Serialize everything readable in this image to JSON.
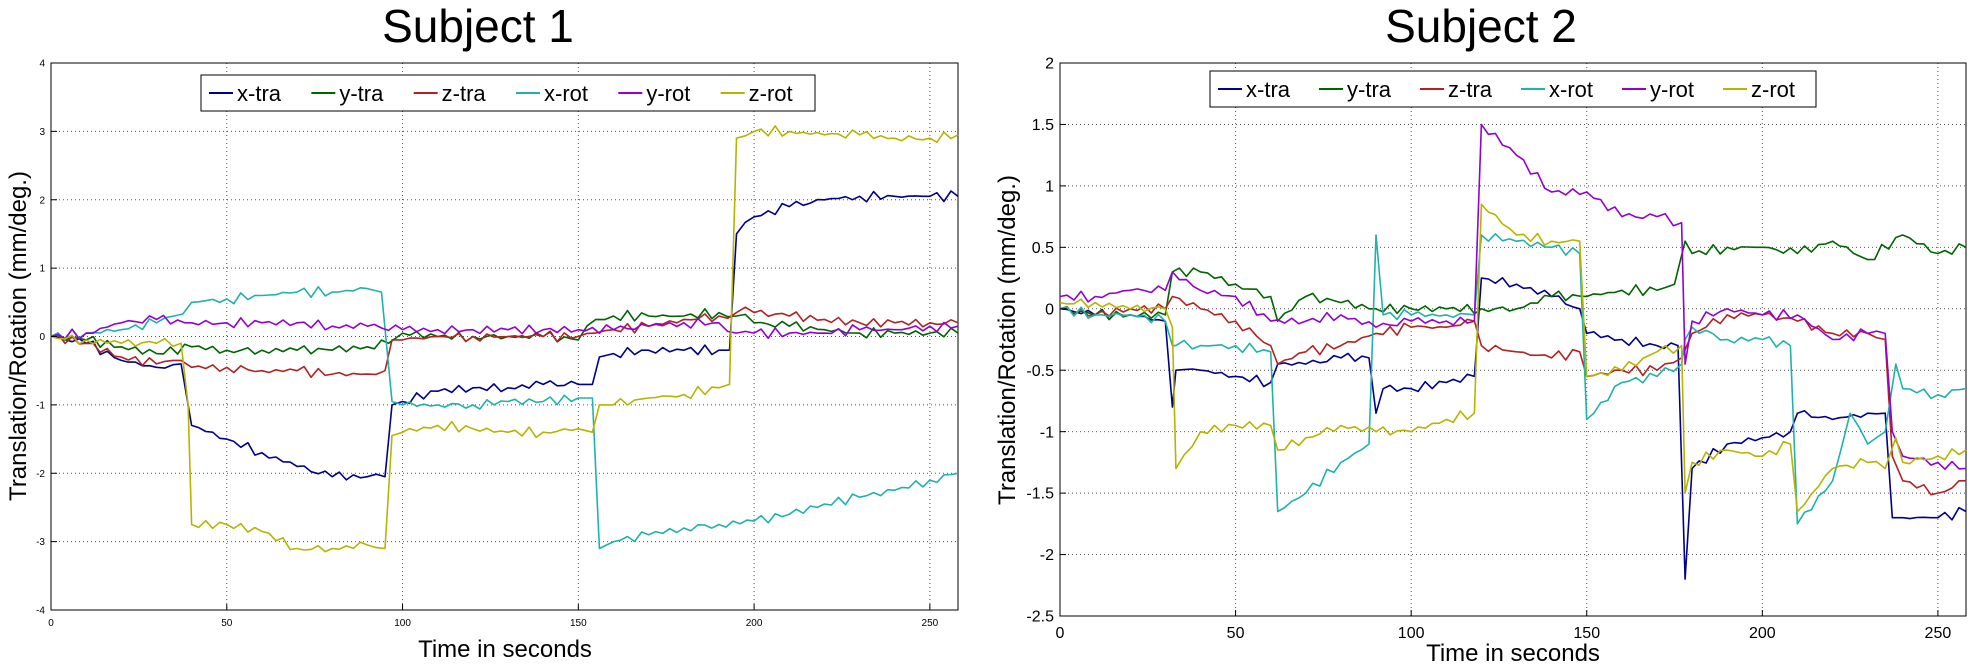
{
  "chart_data": [
    {
      "type": "line",
      "title": "Subject 1",
      "xlabel": "Time in seconds",
      "ylabel": "Translation/Rotation (mm/deg.)",
      "xlim": [
        0,
        258
      ],
      "ylim": [
        -4,
        4
      ],
      "xticks": [
        0,
        50,
        100,
        150,
        200,
        250
      ],
      "yticks": [
        -4,
        -3,
        -2,
        -1,
        0,
        1,
        2,
        3,
        4
      ],
      "grid": true,
      "legend_position": "top-center",
      "series": [
        {
          "name": "x-tra",
          "color": "#00008b",
          "x": [
            0,
            10,
            20,
            30,
            37,
            40,
            50,
            60,
            70,
            80,
            90,
            95,
            97,
            100,
            110,
            120,
            130,
            140,
            150,
            154,
            156,
            160,
            170,
            180,
            190,
            193,
            195,
            200,
            210,
            220,
            230,
            240,
            250,
            258
          ],
          "y": [
            0,
            -0.1,
            -0.35,
            -0.45,
            -0.4,
            -1.3,
            -1.5,
            -1.7,
            -1.9,
            -2.05,
            -2.05,
            -2.05,
            -1.0,
            -0.95,
            -0.8,
            -0.75,
            -0.75,
            -0.7,
            -0.7,
            -0.7,
            -0.3,
            -0.25,
            -0.2,
            -0.2,
            -0.2,
            -0.2,
            1.5,
            1.75,
            1.9,
            2.0,
            2.05,
            2.05,
            2.05,
            2.05
          ]
        },
        {
          "name": "y-tra",
          "color": "#006400",
          "x": [
            0,
            10,
            20,
            30,
            40,
            50,
            60,
            70,
            80,
            90,
            96,
            100,
            110,
            120,
            130,
            140,
            150,
            155,
            160,
            170,
            180,
            190,
            195,
            200,
            210,
            220,
            230,
            240,
            250,
            258
          ],
          "y": [
            0,
            -0.05,
            -0.15,
            -0.25,
            -0.15,
            -0.2,
            -0.2,
            -0.2,
            -0.2,
            -0.15,
            -0.1,
            0.05,
            0,
            0,
            0,
            0,
            -0.05,
            0.25,
            0.3,
            0.3,
            0.3,
            0.35,
            0.3,
            0.2,
            0.15,
            0.1,
            0.05,
            0.05,
            0.05,
            0.05
          ]
        },
        {
          "name": "z-tra",
          "color": "#b22222",
          "x": [
            0,
            10,
            20,
            30,
            37,
            40,
            50,
            60,
            70,
            80,
            90,
            95,
            97,
            100,
            110,
            120,
            130,
            140,
            150,
            155,
            160,
            170,
            180,
            190,
            195,
            200,
            210,
            220,
            230,
            240,
            250,
            258
          ],
          "y": [
            0,
            -0.1,
            -0.3,
            -0.4,
            -0.35,
            -0.45,
            -0.45,
            -0.5,
            -0.5,
            -0.55,
            -0.55,
            -0.5,
            -0.05,
            -0.05,
            0,
            0,
            0,
            0,
            0,
            0.05,
            0.1,
            0.15,
            0.25,
            0.3,
            0.35,
            0.35,
            0.3,
            0.25,
            0.2,
            0.2,
            0.2,
            0.2
          ]
        },
        {
          "name": "x-rot",
          "color": "#20b2aa",
          "x": [
            0,
            10,
            20,
            30,
            35,
            40,
            50,
            60,
            70,
            80,
            90,
            94,
            97,
            100,
            110,
            120,
            130,
            140,
            150,
            154,
            156,
            160,
            170,
            180,
            190,
            200,
            210,
            220,
            230,
            240,
            250,
            258
          ],
          "y": [
            0,
            0.05,
            0.1,
            0.2,
            0.3,
            0.5,
            0.55,
            0.6,
            0.65,
            0.65,
            0.7,
            0.65,
            -0.95,
            -1.0,
            -1.0,
            -1.0,
            -0.95,
            -0.95,
            -0.9,
            -0.9,
            -3.1,
            -3.0,
            -2.9,
            -2.8,
            -2.75,
            -2.7,
            -2.6,
            -2.45,
            -2.35,
            -2.25,
            -2.1,
            -2.0
          ]
        },
        {
          "name": "y-rot",
          "color": "#9400d3",
          "x": [
            0,
            10,
            20,
            30,
            40,
            50,
            60,
            70,
            80,
            90,
            100,
            110,
            120,
            130,
            140,
            150,
            160,
            170,
            180,
            190,
            195,
            200,
            210,
            220,
            230,
            240,
            250,
            258
          ],
          "y": [
            0,
            0.05,
            0.2,
            0.25,
            0.2,
            0.2,
            0.2,
            0.2,
            0.15,
            0.15,
            0.1,
            0.1,
            0.1,
            0.1,
            0.1,
            0.1,
            0.1,
            0.15,
            0.2,
            0.2,
            0.05,
            0.05,
            0.05,
            0.05,
            0.1,
            0.1,
            0.15,
            0.15
          ]
        },
        {
          "name": "z-rot",
          "color": "#b5b500",
          "x": [
            0,
            10,
            20,
            30,
            37,
            39,
            40,
            50,
            60,
            70,
            80,
            90,
            95,
            97,
            100,
            110,
            120,
            130,
            140,
            150,
            154,
            156,
            160,
            170,
            180,
            190,
            193,
            195,
            200,
            210,
            220,
            230,
            240,
            250,
            258
          ],
          "y": [
            0,
            -0.05,
            -0.1,
            -0.1,
            -0.1,
            -1.0,
            -2.75,
            -2.75,
            -2.85,
            -3.1,
            -3.1,
            -3.05,
            -3.1,
            -1.45,
            -1.4,
            -1.3,
            -1.35,
            -1.4,
            -1.4,
            -1.35,
            -1.4,
            -1.0,
            -1.0,
            -0.9,
            -0.85,
            -0.75,
            -0.7,
            2.9,
            3.0,
            3.0,
            2.95,
            2.95,
            2.9,
            2.9,
            2.95
          ]
        }
      ]
    },
    {
      "type": "line",
      "title": "Subject 2",
      "xlabel": "Time in seconds",
      "ylabel": "Translation/Rotation (mm/deg.)",
      "xlim": [
        0,
        258
      ],
      "ylim": [
        -2.5,
        2
      ],
      "xticks": [
        0,
        50,
        100,
        150,
        200,
        250
      ],
      "yticks": [
        -2.5,
        -2,
        -1.5,
        -1,
        -0.5,
        0,
        0.5,
        1,
        1.5,
        2
      ],
      "grid": true,
      "legend_position": "top-center",
      "series": [
        {
          "name": "x-tra",
          "color": "#00008b",
          "x": [
            0,
            10,
            20,
            30,
            32,
            33,
            40,
            50,
            60,
            62,
            70,
            80,
            88,
            90,
            92,
            100,
            110,
            118,
            120,
            130,
            140,
            148,
            150,
            160,
            170,
            176,
            178,
            180,
            190,
            200,
            208,
            210,
            220,
            230,
            235,
            237,
            240,
            250,
            258
          ],
          "y": [
            0,
            -0.05,
            -0.05,
            -0.1,
            -0.8,
            -0.5,
            -0.5,
            -0.55,
            -0.6,
            -0.45,
            -0.45,
            -0.4,
            -0.4,
            -0.85,
            -0.65,
            -0.65,
            -0.6,
            -0.55,
            0.25,
            0.2,
            0.1,
            0,
            -0.2,
            -0.25,
            -0.3,
            -0.3,
            -2.2,
            -1.3,
            -1.1,
            -1.05,
            -1.0,
            -0.85,
            -0.9,
            -0.85,
            -0.85,
            -1.7,
            -1.7,
            -1.7,
            -1.65
          ]
        },
        {
          "name": "y-tra",
          "color": "#006400",
          "x": [
            0,
            10,
            20,
            30,
            32,
            40,
            50,
            60,
            62,
            70,
            80,
            90,
            100,
            110,
            120,
            130,
            140,
            150,
            160,
            170,
            175,
            178,
            180,
            190,
            200,
            210,
            220,
            230,
            240,
            250,
            258
          ],
          "y": [
            0,
            -0.05,
            -0.05,
            -0.05,
            0.3,
            0.3,
            0.2,
            0.1,
            -0.1,
            0.1,
            0.05,
            0,
            0,
            0,
            0,
            0,
            0.1,
            0.1,
            0.15,
            0.15,
            0.2,
            0.55,
            0.45,
            0.5,
            0.5,
            0.45,
            0.55,
            0.4,
            0.6,
            0.45,
            0.5
          ]
        },
        {
          "name": "z-tra",
          "color": "#b22222",
          "x": [
            0,
            10,
            20,
            30,
            32,
            40,
            50,
            60,
            62,
            70,
            80,
            90,
            100,
            110,
            118,
            120,
            130,
            140,
            148,
            150,
            160,
            170,
            177,
            180,
            190,
            200,
            210,
            220,
            230,
            235,
            237,
            240,
            250,
            258
          ],
          "y": [
            0,
            -0.05,
            0,
            0,
            0.1,
            0,
            -0.1,
            -0.3,
            -0.45,
            -0.35,
            -0.3,
            -0.2,
            -0.15,
            -0.15,
            -0.1,
            -0.3,
            -0.35,
            -0.4,
            -0.35,
            -0.55,
            -0.5,
            -0.5,
            -0.4,
            -0.2,
            -0.05,
            -0.05,
            -0.1,
            -0.2,
            -0.2,
            -0.25,
            -1.2,
            -1.4,
            -1.5,
            -1.4
          ]
        },
        {
          "name": "x-rot",
          "color": "#20b2aa",
          "x": [
            0,
            10,
            20,
            30,
            32,
            33,
            40,
            50,
            60,
            62,
            70,
            80,
            88,
            90,
            92,
            100,
            110,
            118,
            120,
            130,
            140,
            148,
            150,
            160,
            170,
            177,
            178,
            180,
            190,
            200,
            208,
            210,
            220,
            225,
            230,
            235,
            238,
            240,
            250,
            258
          ],
          "y": [
            0,
            -0.05,
            -0.05,
            -0.1,
            -0.3,
            -0.3,
            -0.3,
            -0.3,
            -0.35,
            -1.65,
            -1.5,
            -1.25,
            -1.1,
            0.6,
            -0.05,
            -0.05,
            -0.05,
            -0.05,
            0.6,
            0.55,
            0.5,
            0.45,
            -0.9,
            -0.6,
            -0.55,
            -0.45,
            -0.25,
            -0.15,
            -0.25,
            -0.25,
            -0.3,
            -1.75,
            -1.4,
            -0.85,
            -1.1,
            -1.0,
            -0.45,
            -0.65,
            -0.7,
            -0.65
          ]
        },
        {
          "name": "y-rot",
          "color": "#9400d3",
          "x": [
            0,
            10,
            20,
            30,
            32,
            40,
            50,
            60,
            70,
            80,
            90,
            100,
            110,
            118,
            120,
            130,
            140,
            150,
            160,
            170,
            177,
            178,
            180,
            190,
            200,
            210,
            220,
            230,
            235,
            237,
            240,
            250,
            258
          ],
          "y": [
            0.1,
            0.1,
            0.15,
            0.15,
            0.3,
            0.15,
            0.1,
            -0.1,
            -0.1,
            -0.05,
            -0.15,
            -0.1,
            -0.1,
            -0.1,
            1.5,
            1.25,
            0.95,
            0.95,
            0.75,
            0.75,
            0.7,
            -0.45,
            -0.1,
            0,
            -0.05,
            -0.05,
            -0.25,
            -0.2,
            -0.2,
            -1.0,
            -1.2,
            -1.25,
            -1.3
          ]
        },
        {
          "name": "z-rot",
          "color": "#b5b500",
          "x": [
            0,
            10,
            20,
            30,
            32,
            33,
            40,
            50,
            60,
            62,
            70,
            80,
            90,
            100,
            110,
            118,
            120,
            130,
            140,
            148,
            150,
            160,
            170,
            177,
            178,
            180,
            190,
            200,
            208,
            210,
            220,
            230,
            235,
            238,
            240,
            250,
            258
          ],
          "y": [
            0.05,
            0.05,
            0,
            0,
            -0.15,
            -1.3,
            -1.0,
            -0.95,
            -0.95,
            -1.15,
            -1.05,
            -0.95,
            -1.0,
            -1.0,
            -0.9,
            -0.85,
            0.85,
            0.6,
            0.55,
            0.55,
            -0.55,
            -0.5,
            -0.35,
            -0.3,
            -1.5,
            -1.25,
            -1.15,
            -1.2,
            -1.1,
            -1.65,
            -1.3,
            -1.25,
            -1.3,
            -1.05,
            -1.25,
            -1.2,
            -1.15
          ]
        }
      ]
    }
  ]
}
